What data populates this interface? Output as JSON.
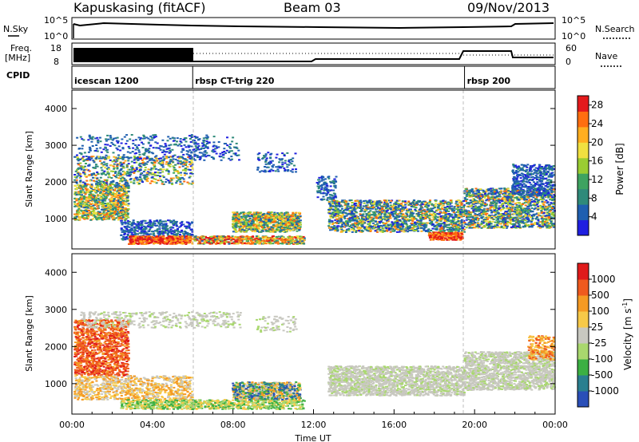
{
  "header": {
    "station": "Kapuskasing (fitACF)",
    "beam": "Beam 03",
    "date": "09/Nov/2013"
  },
  "top_panels": {
    "nsky_label": "N.Sky",
    "nsky_ticks": [
      "10^5",
      "10^0"
    ],
    "nsearch_label": "N.Search",
    "nsearch_ticks": [
      "10^5",
      "10^0"
    ],
    "freq_label_line1": "Freq.",
    "freq_label_line2": "[MHz]",
    "freq_ticks": [
      "18",
      "8"
    ],
    "nave_label": "Nave",
    "nave_ticks": [
      "60",
      "0"
    ],
    "cpid_label": "CPID",
    "cpid_segments": [
      {
        "name": "icescan 1200",
        "start_h": 0,
        "end_h": 6
      },
      {
        "name": "rbsp CT-trig 220",
        "start_h": 6,
        "end_h": 19.5
      },
      {
        "name": "rbsp 200",
        "start_h": 19.5,
        "end_h": 24
      }
    ]
  },
  "chart_data": [
    {
      "type": "heatmap",
      "title": "",
      "ylabel": "Slant Range [km]",
      "xlabel": "",
      "ylim": [
        180,
        4500
      ],
      "yticks": [
        "1000",
        "2000",
        "3000",
        "4000"
      ],
      "colorbar": {
        "label": "Power [dB]",
        "ticks": [
          "4",
          "8",
          "12",
          "16",
          "20",
          "24",
          "28"
        ],
        "range": [
          0,
          30
        ],
        "colors": [
          "#1f1fe0",
          "#1f5fb0",
          "#2f8a7a",
          "#3ea360",
          "#9acd32",
          "#f0e040",
          "#ffae20",
          "#ff6e10",
          "#e41a1c"
        ]
      }
    },
    {
      "type": "heatmap",
      "title": "",
      "ylabel": "Slant Range [km]",
      "xlabel": "Time UT",
      "ylim": [
        180,
        4500
      ],
      "yticks": [
        "1000",
        "2000",
        "3000",
        "4000"
      ],
      "xticks": [
        "00:00",
        "04:00",
        "08:00",
        "12:00",
        "16:00",
        "20:00",
        "00:00"
      ],
      "xlim_hours": [
        0,
        24
      ],
      "colorbar": {
        "label": "Velocity [m s-1]",
        "label_text": "Velocity",
        "label_unit": "[m s",
        "label_sup": "-1",
        "label_close": "]",
        "ticks": [
          "1000",
          "500",
          "100",
          "25",
          "-25",
          "-100",
          "-500",
          "-1000"
        ],
        "colors": [
          "#2a4fb8",
          "#2a7f8f",
          "#3cb043",
          "#a9d86e",
          "#c8c8c0",
          "#f7c948",
          "#f59a23",
          "#ef5a1e",
          "#e01b1b"
        ]
      }
    }
  ]
}
